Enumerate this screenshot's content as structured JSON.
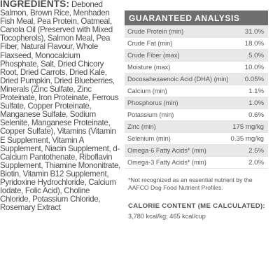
{
  "ingredients": {
    "heading": "INGREDIENTS:",
    "text": " Deboned Salmon, Brown Rice, Menhaden Fish Meal, Pea Protein, Oatmeal, Canola Oil (Preserved with Mixed Tocopherols), Salmon Meal, Pea Fiber, Natural Flavour, Whole Flaxseed, Monocalcium Phosphate, Salt, Dried Chicory Root, Dried Carrots, Dried Kale, Dried Pumpkin, Dried Blueberries, Minerals (Zinc Sulfate, Zinc Proteinate, Iron Proteinate, Ferrous Sulfate, Copper Proteinate, Manganese Sulfate, Sodium Selenite, Manganese Proteinate, Copper Sulfate), Vitamins (Vitamin E Supplement, Vitamin A Supplement, Niacin Supplement, d-Calcium Pantothenate, Riboflavin Supplement, Thiamine Mononitrate, Biotin, Vitamin B12 Supplement, Pyridoxine Hydrochloride, Calcium Iodate, Folic Acid), Choline Chloride, Potassium Chloride, Rosemary Extract"
  },
  "guaranteed_analysis": {
    "title": "GUARANTEED ANALYSIS",
    "rows": [
      {
        "label": "Crude Protein (min)",
        "value": "31.0%"
      },
      {
        "label": "Crude Fat (min)",
        "value": "18.0%"
      },
      {
        "label": "Crude Fiber (max)",
        "value": "5.0%"
      },
      {
        "label": "Moisture (max)",
        "value": "10.0%"
      },
      {
        "label": "Docosahexaenoic Acid (DHA) (min)",
        "value": "0.05%"
      },
      {
        "label": "Calcium (min)",
        "value": "1.1%"
      },
      {
        "label": "Phosphorus (min)",
        "value": "1.0%"
      },
      {
        "label": "Potassium (min)",
        "value": "0.6%"
      },
      {
        "label": "Zinc (min)",
        "value": "175 mg/kg"
      },
      {
        "label": "Selenium (min)",
        "value": "0.35 mg/kg"
      },
      {
        "label": "Omega-6 Fatty Acids* (min)",
        "value": "2.5%"
      },
      {
        "label": "Omega-3 Fatty Acids* (min)",
        "value": "2.0%"
      }
    ]
  },
  "footnote": "*Not recognized as an essential nutrient by the AAFCO Dog Food Nutrient Profiles.",
  "calorie": {
    "heading": "CALORIE CONTENT (ME CALCULATED):",
    "value": "3,780 kcal/kg; 465 kcal/cup"
  }
}
